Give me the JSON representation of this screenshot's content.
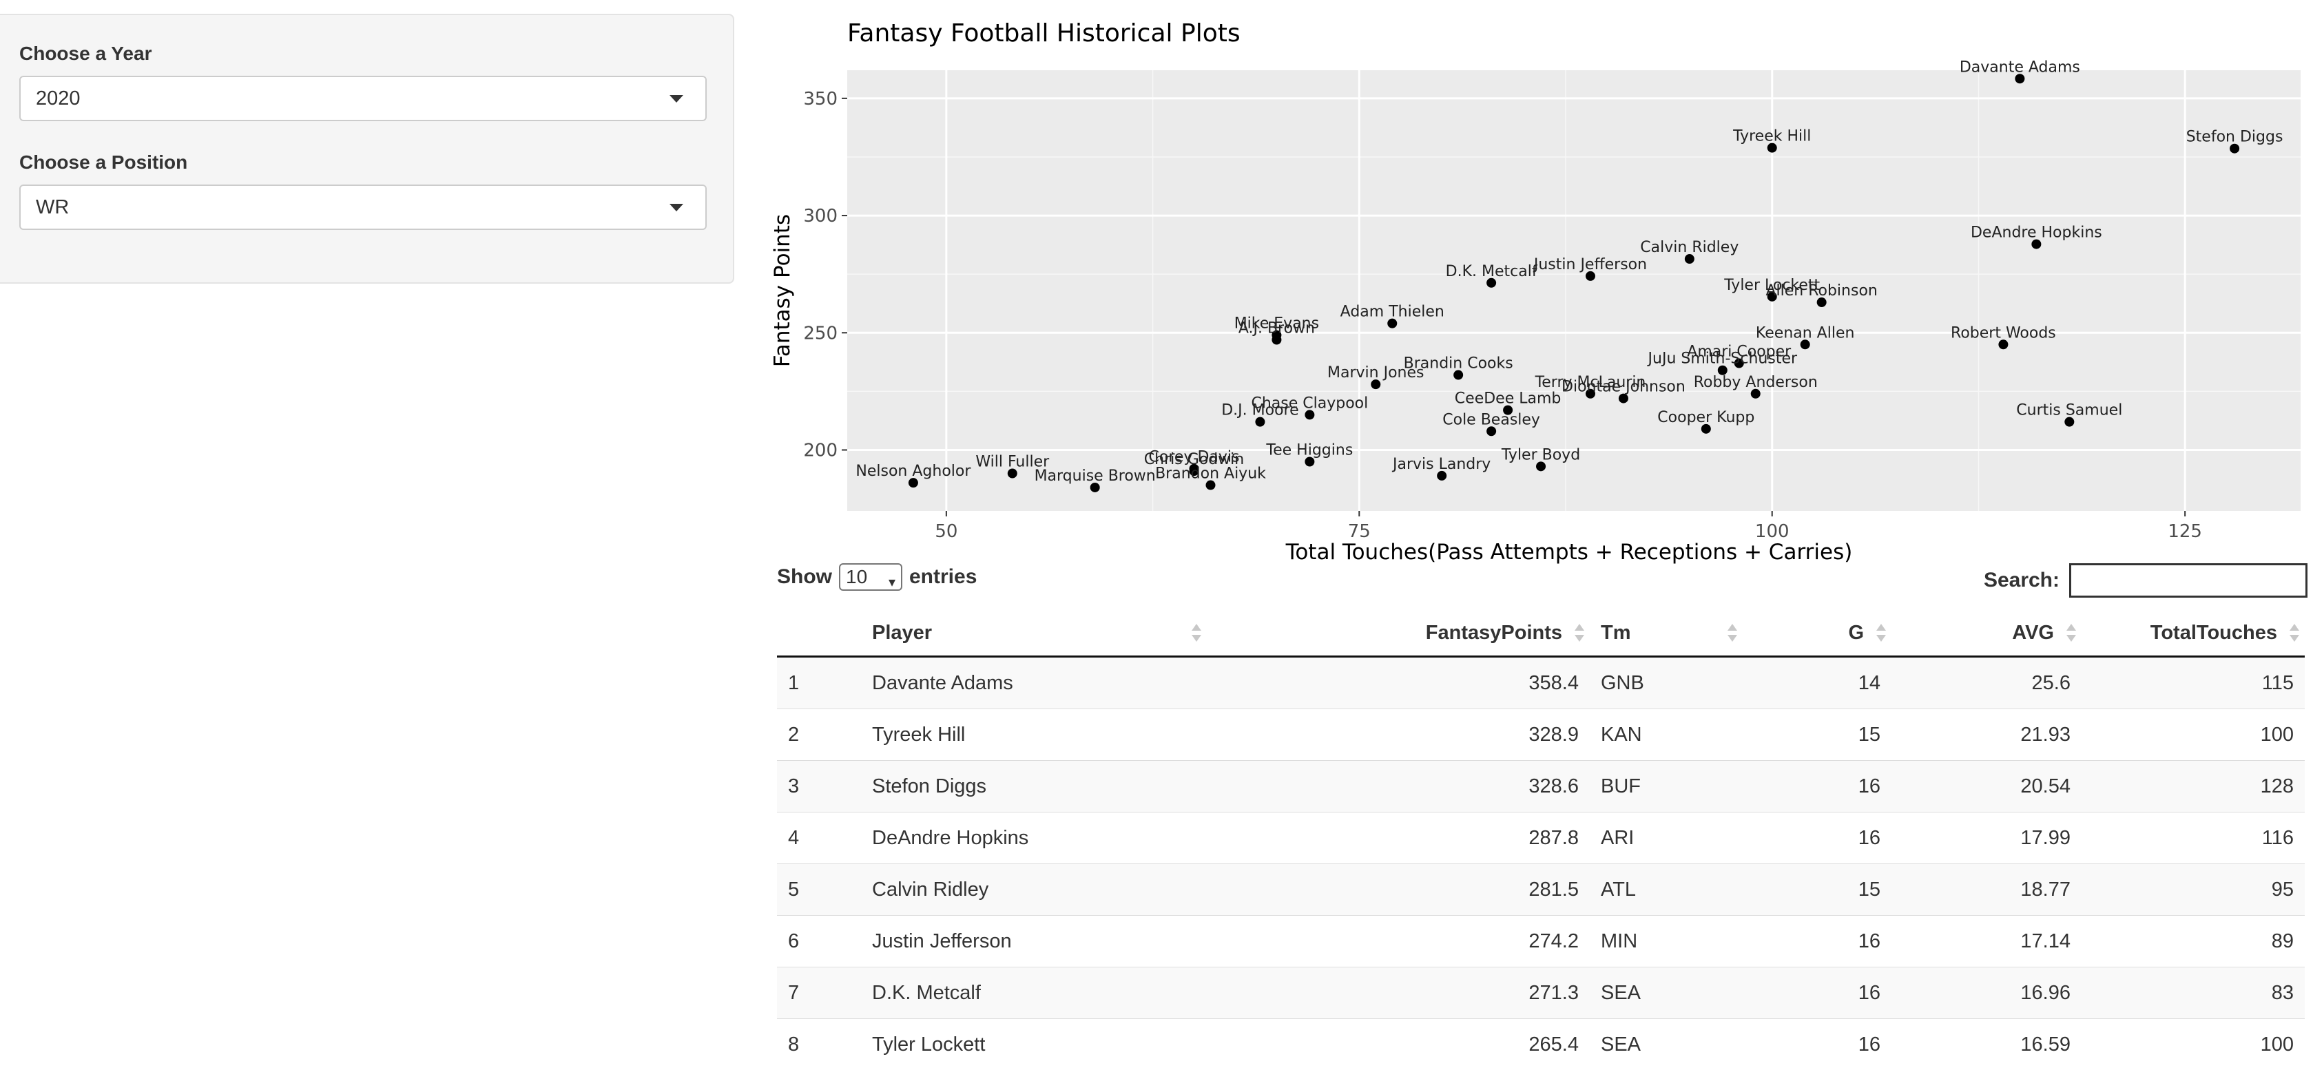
{
  "sidebar": {
    "year_label": "Choose a Year",
    "year_value": "2020",
    "position_label": "Choose a Position",
    "position_value": "WR"
  },
  "chart_data": {
    "type": "scatter",
    "title": "Fantasy Football Historical Plots",
    "xlabel": "Total Touches(Pass Attempts + Receptions + Carries)",
    "ylabel": "Fantasy Points",
    "xlim": [
      44,
      132
    ],
    "ylim": [
      174,
      362
    ],
    "xticks": [
      50,
      75,
      100,
      125
    ],
    "yticks": [
      200,
      250,
      300,
      350
    ],
    "grid": true,
    "points": [
      {
        "label": "Davante Adams",
        "x": 115,
        "y": 358.4
      },
      {
        "label": "Tyreek Hill",
        "x": 100,
        "y": 328.9
      },
      {
        "label": "Stefon Diggs",
        "x": 128,
        "y": 328.6
      },
      {
        "label": "DeAndre Hopkins",
        "x": 116,
        "y": 287.8
      },
      {
        "label": "Calvin Ridley",
        "x": 95,
        "y": 281.5
      },
      {
        "label": "Justin Jefferson",
        "x": 89,
        "y": 274.2
      },
      {
        "label": "D.K. Metcalf",
        "x": 83,
        "y": 271.3
      },
      {
        "label": "Tyler Lockett",
        "x": 100,
        "y": 265.4
      },
      {
        "label": "Allen Robinson",
        "x": 103,
        "y": 263
      },
      {
        "label": "Adam Thielen",
        "x": 77,
        "y": 254
      },
      {
        "label": "Mike Evans",
        "x": 70,
        "y": 249
      },
      {
        "label": "A.J. Brown",
        "x": 70,
        "y": 247
      },
      {
        "label": "Keenan Allen",
        "x": 102,
        "y": 245
      },
      {
        "label": "Robert Woods",
        "x": 114,
        "y": 245
      },
      {
        "label": "Amari Cooper",
        "x": 98,
        "y": 237
      },
      {
        "label": "JuJu Smith-Schuster",
        "x": 97,
        "y": 234
      },
      {
        "label": "Brandin Cooks",
        "x": 81,
        "y": 232
      },
      {
        "label": "Marvin Jones",
        "x": 76,
        "y": 228
      },
      {
        "label": "Terry McLaurin",
        "x": 89,
        "y": 224
      },
      {
        "label": "Diontae Johnson",
        "x": 91,
        "y": 222
      },
      {
        "label": "Robby Anderson",
        "x": 99,
        "y": 224
      },
      {
        "label": "CeeDee Lamb",
        "x": 84,
        "y": 217
      },
      {
        "label": "Chase Claypool",
        "x": 72,
        "y": 215
      },
      {
        "label": "D.J. Moore",
        "x": 69,
        "y": 212
      },
      {
        "label": "Curtis Samuel",
        "x": 118,
        "y": 212
      },
      {
        "label": "Cooper Kupp",
        "x": 96,
        "y": 209
      },
      {
        "label": "Cole Beasley",
        "x": 83,
        "y": 208
      },
      {
        "label": "Tee Higgins",
        "x": 72,
        "y": 195
      },
      {
        "label": "Tyler Boyd",
        "x": 86,
        "y": 193
      },
      {
        "label": "Corey Davis",
        "x": 65,
        "y": 192
      },
      {
        "label": "Chris Godwin",
        "x": 65,
        "y": 191
      },
      {
        "label": "Will Fuller",
        "x": 54,
        "y": 190
      },
      {
        "label": "Jarvis Landry",
        "x": 80,
        "y": 189
      },
      {
        "label": "Nelson Agholor",
        "x": 48,
        "y": 186
      },
      {
        "label": "Brandon Aiyuk",
        "x": 66,
        "y": 185
      },
      {
        "label": "Marquise Brown",
        "x": 59,
        "y": 184
      }
    ]
  },
  "table": {
    "show_label": "Show",
    "entries_value": "10",
    "entries_label": "entries",
    "search_label": "Search:",
    "columns": [
      "",
      "Player",
      "FantasyPoints",
      "Tm",
      "G",
      "AVG",
      "TotalTouches"
    ],
    "rows": [
      [
        "1",
        "Davante Adams",
        "358.4",
        "GNB",
        "14",
        "25.6",
        "115"
      ],
      [
        "2",
        "Tyreek Hill",
        "328.9",
        "KAN",
        "15",
        "21.93",
        "100"
      ],
      [
        "3",
        "Stefon Diggs",
        "328.6",
        "BUF",
        "16",
        "20.54",
        "128"
      ],
      [
        "4",
        "DeAndre Hopkins",
        "287.8",
        "ARI",
        "16",
        "17.99",
        "116"
      ],
      [
        "5",
        "Calvin Ridley",
        "281.5",
        "ATL",
        "15",
        "18.77",
        "95"
      ],
      [
        "6",
        "Justin Jefferson",
        "274.2",
        "MIN",
        "16",
        "17.14",
        "89"
      ],
      [
        "7",
        "D.K. Metcalf",
        "271.3",
        "SEA",
        "16",
        "16.96",
        "83"
      ],
      [
        "8",
        "Tyler Lockett",
        "265.4",
        "SEA",
        "16",
        "16.59",
        "100"
      ]
    ]
  }
}
